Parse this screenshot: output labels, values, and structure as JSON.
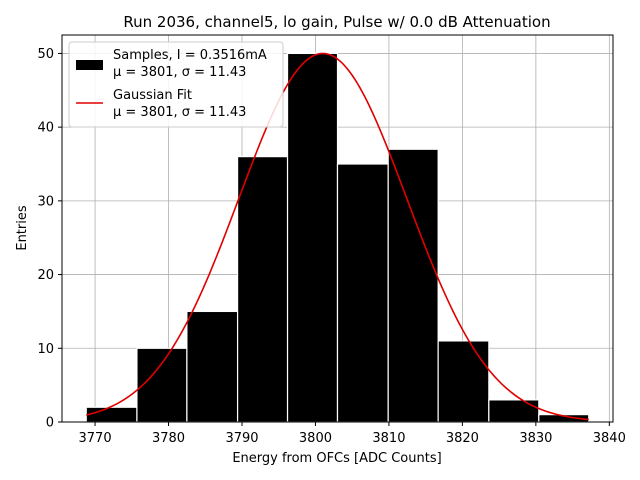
{
  "chart_data": {
    "type": "bar",
    "title": "Run 2036, channel5, lo gain, Pulse w/ 0.0 dB Attenuation",
    "xlabel": "Energy from OFCs [ADC Counts]",
    "ylabel": "Entries",
    "xlim": [
      3765.5,
      3840.5
    ],
    "ylim": [
      0,
      52.5
    ],
    "xticks": [
      3770,
      3780,
      3790,
      3800,
      3810,
      3820,
      3830,
      3840
    ],
    "yticks": [
      0,
      10,
      20,
      30,
      40,
      50
    ],
    "grid": true,
    "legend_position": "top-left",
    "histogram": {
      "name": "Samples, I = 0.3516mA",
      "name_line2": "μ = 3801, σ = 11.43",
      "bin_edges": [
        3768.8,
        3775.7,
        3782.5,
        3789.4,
        3796.2,
        3803.0,
        3809.9,
        3816.7,
        3823.6,
        3830.4,
        3837.2
      ],
      "counts": [
        2,
        10,
        15,
        36,
        50,
        35,
        37,
        11,
        3,
        1
      ],
      "color": "#000000",
      "edge_color": "#ffffff"
    },
    "fit": {
      "name": "Gaussian Fit",
      "name_line2": "μ = 3801, σ = 11.43",
      "mu": 3801,
      "sigma": 11.43,
      "amplitude": 50,
      "x_range": [
        3768.8,
        3837.2
      ],
      "color": "#e00000"
    }
  }
}
